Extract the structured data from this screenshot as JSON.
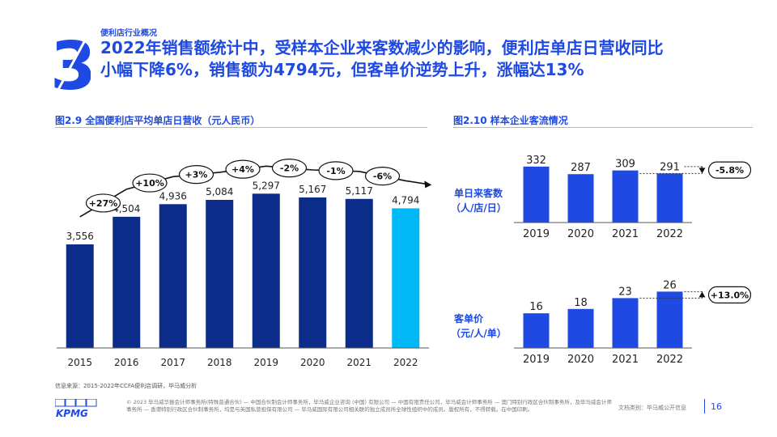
{
  "header": {
    "section_label": "便利店行业概况",
    "big_number": "3",
    "headline_line1": "2022年销售额统计中，受样本企业来客数减少的影响，便利店单店日营收同比",
    "headline_line2": "小幅下降6%，销售额为4794元，但客单价逆势上升，涨幅达13%"
  },
  "colors": {
    "brand_blue": "#1e49e2",
    "dark_bar": "#0c2c8a",
    "highlight_bar": "#00b8f5"
  },
  "chart_data": [
    {
      "type": "bar",
      "title": "图2.9 全国便利店平均单店日营收（元人民币）",
      "categories": [
        "2015",
        "2016",
        "2017",
        "2018",
        "2019",
        "2020",
        "2021",
        "2022"
      ],
      "values": [
        3556,
        4504,
        4936,
        5084,
        5297,
        5167,
        5117,
        4794
      ],
      "value_labels": [
        "3,556",
        "4,504",
        "4,936",
        "5,084",
        "5,297",
        "5,167",
        "5,117",
        "4,794"
      ],
      "growth_labels": [
        "+27%",
        "+10%",
        "+3%",
        "+4%",
        "-2%",
        "-1%",
        "-6%"
      ],
      "highlight_index": 7,
      "ylim": [
        0,
        6000
      ]
    },
    {
      "type": "bar",
      "title": "图2.10 样本企业客流情况",
      "ylabel_line1": "单日来客数",
      "ylabel_line2": "（人/店/日）",
      "categories": [
        "2019",
        "2020",
        "2021",
        "2022"
      ],
      "values": [
        332,
        287,
        309,
        291
      ],
      "change_label": "-5.8%",
      "ylim": [
        0,
        360
      ]
    },
    {
      "type": "bar",
      "ylabel_line1": "客单价",
      "ylabel_line2": "（元/人/单）",
      "categories": [
        "2019",
        "2020",
        "2021",
        "2022"
      ],
      "values": [
        16,
        18,
        23,
        26
      ],
      "change_label": "+13.0%",
      "ylim": [
        0,
        28
      ]
    }
  ],
  "source": "信息来源：2015-2022年CCFA便利店调研，毕马威分析",
  "footer": {
    "logo": "KPMG",
    "legal": "© 2023 毕马威华振会计师事务所(特殊普通合伙) — 中国合伙制会计师事务所，毕马威企业咨询 (中国) 有限公司 — 中国有限责任公司，毕马威会计师事务所 — 澳门特别行政区合伙制事务所，及毕马威会计师事务所 — 香港特别行政区合伙制事务所，均是与英国私营担保有限公司 — 毕马威国际有限公司相关联的独立成员所全球性组织中的成员。版权所有，不得转载。在中国印刷。",
    "doc_type": "文档类别：毕马威公开信息",
    "page_number": "16"
  }
}
